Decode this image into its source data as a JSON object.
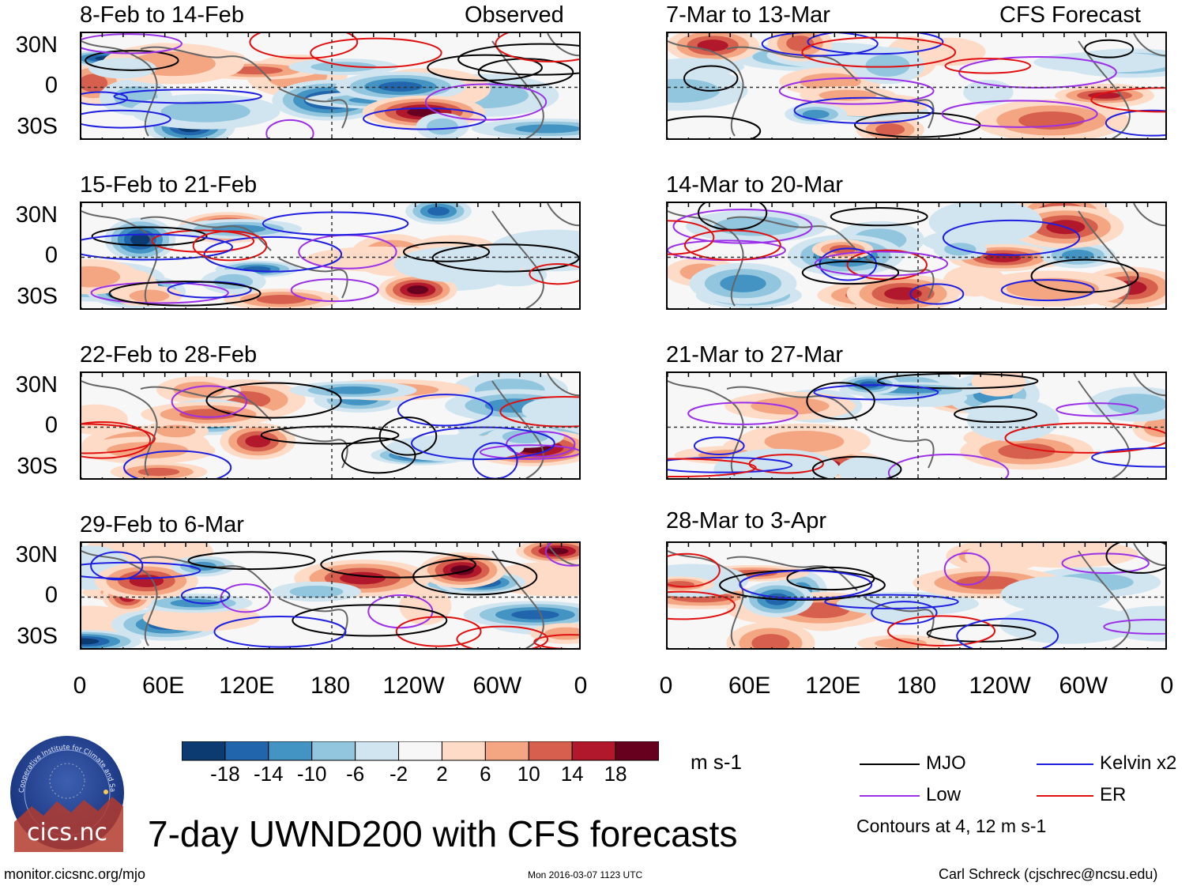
{
  "header": {
    "left_column_label": "Observed",
    "right_column_label": "CFS Forecast"
  },
  "panels": [
    {
      "title": "8-Feb to 14-Feb",
      "column": "observed"
    },
    {
      "title": "15-Feb to 21-Feb",
      "column": "observed"
    },
    {
      "title": "22-Feb to 28-Feb",
      "column": "observed"
    },
    {
      "title": "29-Feb to 6-Mar",
      "column": "observed"
    },
    {
      "title": "7-Mar to 13-Mar",
      "column": "forecast"
    },
    {
      "title": "14-Mar to 20-Mar",
      "column": "forecast"
    },
    {
      "title": "21-Mar to 27-Mar",
      "column": "forecast"
    },
    {
      "title": "28-Mar to 3-Apr",
      "column": "forecast"
    }
  ],
  "chart_data": {
    "type": "heatmap",
    "title": "7-day UWND200 with CFS forecasts",
    "variable": "200-hPa zonal wind anomaly",
    "units": "m s-1",
    "y_ticks": [
      "30N",
      "0",
      "30S"
    ],
    "x_ticks": [
      "0",
      "60E",
      "120E",
      "180",
      "120W",
      "60W",
      "0"
    ],
    "colorbar": {
      "labels": [
        "-18",
        "-14",
        "-10",
        "-6",
        "-2",
        "2",
        "6",
        "10",
        "14",
        "18"
      ],
      "colors": [
        "#0b3b70",
        "#2166ac",
        "#4393c3",
        "#92c5de",
        "#d1e5f0",
        "#f7f7f7",
        "#fddbc7",
        "#f4a582",
        "#d6604d",
        "#b2182b",
        "#67001f"
      ]
    },
    "contours": {
      "note": "Contours at 4, 12 m s-1",
      "series": [
        {
          "name": "MJO",
          "color": "#000000"
        },
        {
          "name": "Kelvin x2",
          "color": "#1f1fe0"
        },
        {
          "name": "Low",
          "color": "#9b30e8"
        },
        {
          "name": "ER",
          "color": "#e01010"
        }
      ]
    }
  },
  "footer": {
    "url": "monitor.cicsnc.org/mjo",
    "timestamp": "Mon 2016-03-07 1123 UTC",
    "author": "Carl Schreck (cjschrec@ncsu.edu)",
    "logo_text": "cics.nc",
    "logo_ring_text": "Cooperative Institute for Climate and Satellites"
  }
}
